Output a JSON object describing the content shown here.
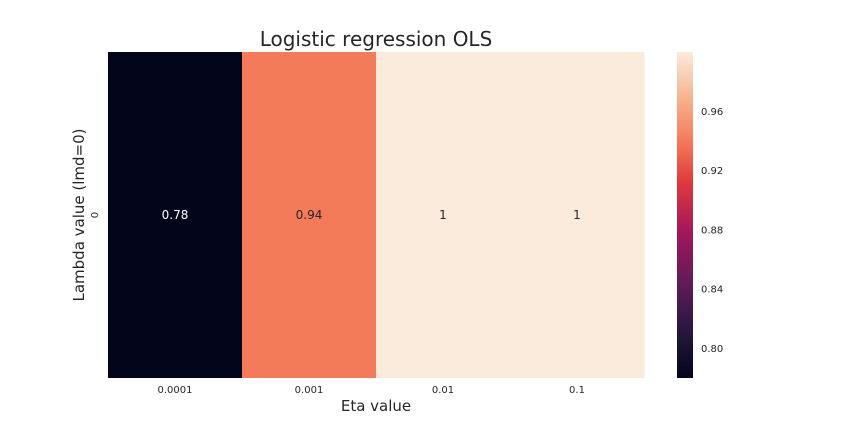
{
  "chart_data": {
    "type": "heatmap",
    "title": "Logistic regression OLS",
    "xlabel": "Eta value",
    "ylabel": "Lambda value (lmd=0)",
    "x_categories": [
      "0.0001",
      "0.001",
      "0.01",
      "0.1"
    ],
    "y_categories": [
      "0"
    ],
    "values": [
      [
        0.78,
        0.94,
        1.0,
        1.0
      ]
    ],
    "cell_labels": [
      [
        "0.78",
        "0.94",
        "1",
        "1"
      ]
    ],
    "colorbar": {
      "colormap": "rocket",
      "range": [
        0.78,
        1.0
      ],
      "ticks": [
        "0.80",
        "0.84",
        "0.88",
        "0.92",
        "0.96"
      ]
    },
    "grid": false
  }
}
